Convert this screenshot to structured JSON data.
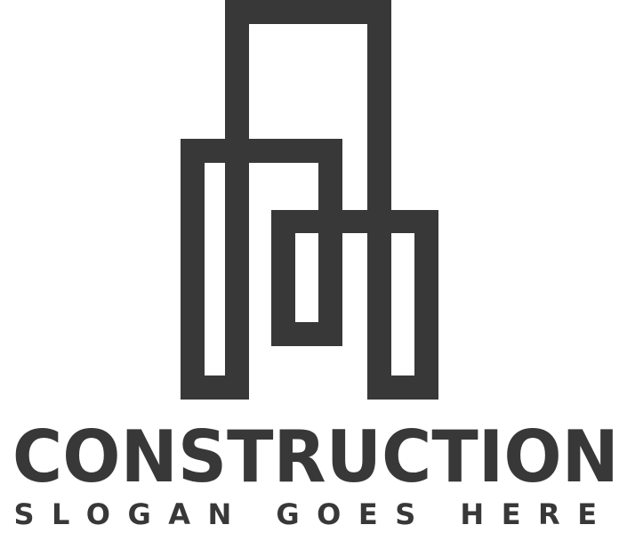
{
  "logo": {
    "brand_name": "CONSTRUCTION",
    "slogan": "SLOGAN GOES HERE",
    "icon": "building-outline-icon",
    "color": "#383838",
    "background": "#ffffff"
  }
}
